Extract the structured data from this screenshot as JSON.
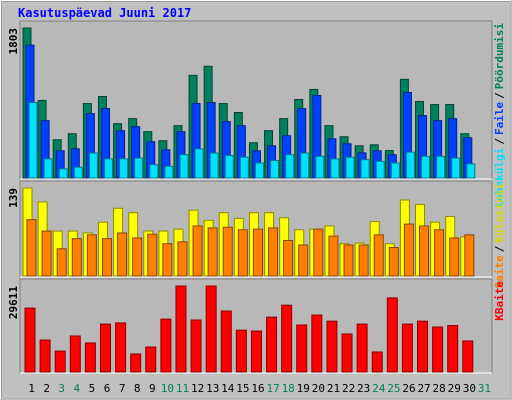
{
  "chart_data": {
    "type": "bar",
    "title": "Kasutuspäevad Juuni 2017",
    "categories": [
      "1",
      "2",
      "3",
      "4",
      "5",
      "6",
      "7",
      "8",
      "9",
      "10",
      "11",
      "12",
      "13",
      "14",
      "15",
      "16",
      "17",
      "18",
      "19",
      "20",
      "21",
      "22",
      "23",
      "24",
      "25",
      "26",
      "27",
      "28",
      "29",
      "30",
      "31"
    ],
    "highlight_categories": [
      "3",
      "4",
      "10",
      "11",
      "17",
      "18",
      "24",
      "25",
      "31"
    ],
    "category_color": "#000000",
    "highlight_color": "#00805c",
    "legend_separator": "/",
    "panels": [
      {
        "ylim": [
          0,
          1803
        ],
        "yticks": [
          1803
        ],
        "series": [
          {
            "name": "Pöördumisi",
            "color": "#00805c",
            "values": [
              1803,
              932,
              460,
              532,
              895,
              980,
              653,
              714,
              557,
              448,
              629,
              1234,
              1343,
              895,
              787,
              424,
              569,
              714,
              944,
              1065,
              629,
              496,
              387,
              399,
              330,
              1186,
              920,
              883,
              883,
              532,
              null
            ]
          },
          {
            "name": "Faile",
            "color": "#0040ff",
            "values": [
              1597,
              690,
              327,
              351,
              774,
              835,
              569,
              617,
              436,
              339,
              557,
              895,
              907,
              678,
              629,
              327,
              387,
              508,
              835,
              992,
              472,
              411,
              302,
              327,
              280,
              1028,
              750,
              690,
              714,
              484,
              null
            ]
          },
          {
            "name": "Lehekülgi",
            "color": "#00e0ff",
            "values": [
              907,
              230,
              110,
              130,
              300,
              230,
              230,
              240,
              160,
              140,
              280,
              350,
              300,
              270,
              250,
              180,
              210,
              280,
              300,
              260,
              230,
              250,
              220,
              200,
              180,
              310,
              260,
              260,
              240,
              170,
              null
            ]
          }
        ]
      },
      {
        "ylim": [
          0,
          139
        ],
        "yticks": [
          139
        ],
        "series": [
          {
            "name": "Külastusi",
            "color": "#ffff00",
            "values": [
              139,
              117,
              71,
              71,
              68,
              85,
              107,
              100,
              71,
              71,
              74,
              104,
              88,
              100,
              91,
              100,
              100,
              92,
              73,
              74,
              79,
              51,
              52,
              86,
              51,
              120,
              113,
              85,
              94,
              62,
              null
            ]
          },
          {
            "name": "Saite",
            "color": "#ff8000",
            "values": [
              89,
              71,
              43,
              59,
              65,
              59,
              68,
              60,
              66,
              51,
              54,
              79,
              76,
              77,
              73,
              74,
              76,
              56,
              49,
              74,
              63,
              49,
              49,
              65,
              45,
              82,
              79,
              73,
              60,
              65,
              null
            ]
          }
        ]
      },
      {
        "ylim": [
          0,
          29611
        ],
        "yticks": [
          29611
        ],
        "series": [
          {
            "name": "KBaite",
            "color": "#ff0000",
            "values": [
              22000,
              11000,
              7200,
              12400,
              10000,
              16500,
              16900,
              6200,
              8600,
              18200,
              29611,
              17900,
              29611,
              21000,
              14400,
              14100,
              18900,
              23000,
              16200,
              19600,
              17500,
              13100,
              16500,
              6900,
              25500,
              16500,
              17500,
              15500,
              16000,
              10700,
              null
            ]
          }
        ]
      }
    ]
  }
}
